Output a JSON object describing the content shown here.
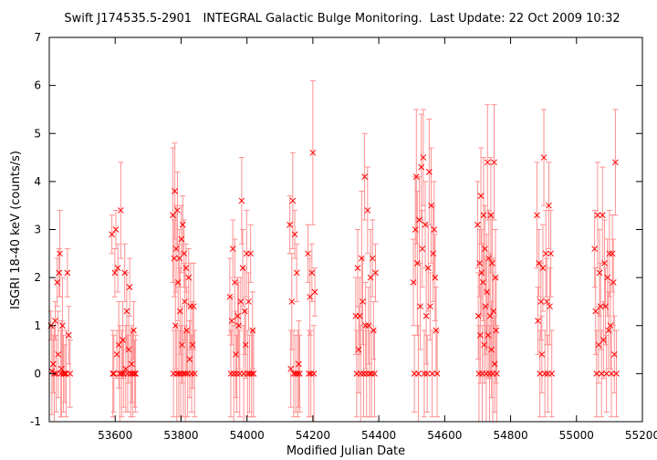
{
  "chart_data": {
    "type": "scatter",
    "title": "Swift J174535.5-2901   INTEGRAL Galactic Bulge Monitoring.  Last Update: 22 Oct 2009 10:32",
    "xlabel": "Modified Julian Date",
    "ylabel": "ISGRI 18-40 keV (counts/s)",
    "xlim": [
      53400,
      55200
    ],
    "ylim": [
      -1,
      7
    ],
    "xticks": [
      53600,
      53800,
      54000,
      54200,
      54400,
      54600,
      54800,
      55000,
      55200
    ],
    "yticks": [
      -1,
      0,
      1,
      2,
      3,
      4,
      5,
      6,
      7
    ],
    "grid": false,
    "marker": "x",
    "color": "#ff0000",
    "errorbar_color": "#ff9090",
    "series": [
      {
        "points": [
          [
            53405,
            1.0,
            0.3
          ],
          [
            53408,
            0.05,
            0.9
          ],
          [
            53412,
            0.2,
            0.6
          ],
          [
            53415,
            0.0,
            1.0
          ],
          [
            53418,
            1.1,
            0.4
          ],
          [
            53421,
            0.0,
            0.8
          ],
          [
            53424,
            1.9,
            0.5
          ],
          [
            53427,
            0.4,
            0.9
          ],
          [
            53430,
            2.1,
            0.5
          ],
          [
            53432,
            2.5,
            0.9
          ],
          [
            53435,
            0.0,
            0.9
          ],
          [
            53437,
            0.1,
            1.0
          ],
          [
            53440,
            1.0,
            1.0
          ],
          [
            53443,
            0.0,
            0.8
          ],
          [
            53447,
            0.0,
            0.6
          ],
          [
            53451,
            0.0,
            0.9
          ],
          [
            53455,
            2.1,
            0.5
          ],
          [
            53459,
            0.8,
            0.6
          ],
          [
            53463,
            0.0,
            0.7
          ],
          [
            53590,
            2.9,
            0.4
          ],
          [
            53593,
            0.0,
            0.9
          ],
          [
            53596,
            0.0,
            0.8
          ],
          [
            53599,
            2.1,
            0.5
          ],
          [
            53602,
            3.0,
            0.4
          ],
          [
            53605,
            0.4,
            0.5
          ],
          [
            53608,
            2.2,
            0.5
          ],
          [
            53611,
            0.6,
            0.9
          ],
          [
            53614,
            0.0,
            1.0
          ],
          [
            53617,
            3.4,
            1.0
          ],
          [
            53620,
            0.0,
            0.9
          ],
          [
            53623,
            0.7,
            0.8
          ],
          [
            53626,
            0.0,
            0.7
          ],
          [
            53629,
            2.1,
            0.6
          ],
          [
            53632,
            0.1,
            0.9
          ],
          [
            53635,
            1.3,
            0.8
          ],
          [
            53638,
            0.0,
            0.8
          ],
          [
            53641,
            0.5,
            0.7
          ],
          [
            53644,
            1.8,
            0.6
          ],
          [
            53647,
            0.0,
            0.9
          ],
          [
            53650,
            0.2,
            0.8
          ],
          [
            53653,
            0.0,
            0.9
          ],
          [
            53656,
            0.9,
            0.6
          ],
          [
            53659,
            0.0,
            0.7
          ],
          [
            53662,
            0.0,
            0.8
          ],
          [
            53775,
            3.3,
            1.4
          ],
          [
            53777,
            0.0,
            0.9
          ],
          [
            53779,
            2.4,
            0.8
          ],
          [
            53781,
            3.8,
            1.0
          ],
          [
            53783,
            1.0,
            0.9
          ],
          [
            53785,
            2.6,
            0.9
          ],
          [
            53787,
            0.0,
            1.0
          ],
          [
            53789,
            3.4,
            0.8
          ],
          [
            53791,
            1.9,
            0.8
          ],
          [
            53793,
            0.0,
            0.9
          ],
          [
            53795,
            2.4,
            0.6
          ],
          [
            53797,
            1.3,
            0.9
          ],
          [
            53799,
            0.0,
            1.0
          ],
          [
            53801,
            2.8,
            0.7
          ],
          [
            53803,
            0.6,
            0.8
          ],
          [
            53805,
            3.1,
            0.6
          ],
          [
            53807,
            0.0,
            0.9
          ],
          [
            53809,
            2.5,
            0.7
          ],
          [
            53811,
            1.5,
            0.8
          ],
          [
            53813,
            0.0,
            1.0
          ],
          [
            53815,
            2.2,
            0.5
          ],
          [
            53817,
            0.9,
            0.9
          ],
          [
            53820,
            0.0,
            0.9
          ],
          [
            53823,
            2.0,
            0.6
          ],
          [
            53826,
            0.3,
            0.8
          ],
          [
            53829,
            1.4,
            0.9
          ],
          [
            53832,
            0.0,
            0.8
          ],
          [
            53835,
            0.6,
            0.9
          ],
          [
            53838,
            1.4,
            0.9
          ],
          [
            53841,
            0.0,
            0.9
          ],
          [
            53948,
            1.6,
            0.8
          ],
          [
            53951,
            0.0,
            0.9
          ],
          [
            53954,
            1.1,
            0.5
          ],
          [
            53957,
            2.6,
            0.6
          ],
          [
            53960,
            0.0,
            1.0
          ],
          [
            53963,
            1.9,
            0.9
          ],
          [
            53966,
            0.4,
            0.9
          ],
          [
            53969,
            0.0,
            0.8
          ],
          [
            53972,
            1.2,
            0.8
          ],
          [
            53975,
            1.0,
            0.9
          ],
          [
            53978,
            0.0,
            0.9
          ],
          [
            53981,
            1.5,
            0.5
          ],
          [
            53984,
            3.6,
            0.9
          ],
          [
            53987,
            2.2,
            0.8
          ],
          [
            53990,
            0.0,
            1.0
          ],
          [
            53993,
            1.3,
            0.9
          ],
          [
            53996,
            0.6,
            0.7
          ],
          [
            53999,
            2.5,
            0.9
          ],
          [
            54002,
            0.0,
            0.9
          ],
          [
            54005,
            1.5,
            0.6
          ],
          [
            54008,
            0.0,
            0.8
          ],
          [
            54011,
            2.5,
            0.6
          ],
          [
            54014,
            0.0,
            0.9
          ],
          [
            54017,
            0.9,
            0.8
          ],
          [
            54020,
            0.0,
            0.9
          ],
          [
            54130,
            3.1,
            0.6
          ],
          [
            54133,
            0.1,
            0.8
          ],
          [
            54136,
            1.5,
            1.0
          ],
          [
            54139,
            3.6,
            1.0
          ],
          [
            54142,
            0.0,
            0.9
          ],
          [
            54145,
            2.9,
            0.5
          ],
          [
            54148,
            0.0,
            0.8
          ],
          [
            54151,
            2.1,
            0.6
          ],
          [
            54154,
            0.0,
            0.9
          ],
          [
            54157,
            0.2,
            0.9
          ],
          [
            54160,
            0.0,
            0.8
          ],
          [
            54185,
            2.5,
            0.6
          ],
          [
            54188,
            0.0,
            0.9
          ],
          [
            54191,
            1.6,
            0.8
          ],
          [
            54194,
            0.0,
            0.9
          ],
          [
            54197,
            2.1,
            0.6
          ],
          [
            54200,
            4.6,
            1.5
          ],
          [
            54203,
            0.0,
            1.0
          ],
          [
            54206,
            1.7,
            0.5
          ],
          [
            54330,
            1.2,
            0.8
          ],
          [
            54333,
            0.0,
            0.9
          ],
          [
            54336,
            2.2,
            0.8
          ],
          [
            54339,
            0.5,
            0.9
          ],
          [
            54342,
            1.2,
            0.8
          ],
          [
            54345,
            0.0,
            1.0
          ],
          [
            54348,
            2.4,
            1.4
          ],
          [
            54351,
            1.5,
            0.9
          ],
          [
            54354,
            0.0,
            0.9
          ],
          [
            54357,
            4.1,
            0.9
          ],
          [
            54360,
            1.0,
            0.9
          ],
          [
            54363,
            0.0,
            0.9
          ],
          [
            54366,
            3.4,
            0.9
          ],
          [
            54369,
            1.0,
            0.8
          ],
          [
            54372,
            0.0,
            0.9
          ],
          [
            54375,
            2.0,
            1.0
          ],
          [
            54378,
            0.0,
            0.9
          ],
          [
            54381,
            2.4,
            0.8
          ],
          [
            54384,
            0.9,
            0.6
          ],
          [
            54387,
            0.0,
            0.9
          ],
          [
            54390,
            2.1,
            0.6
          ],
          [
            54505,
            1.9,
            0.9
          ],
          [
            54508,
            0.0,
            0.8
          ],
          [
            54511,
            3.0,
            1.1
          ],
          [
            54514,
            4.1,
            1.4
          ],
          [
            54517,
            2.3,
            1.5
          ],
          [
            54520,
            0.0,
            1.0
          ],
          [
            54523,
            3.2,
            0.9
          ],
          [
            54526,
            1.4,
            0.9
          ],
          [
            54529,
            4.3,
            1.1
          ],
          [
            54532,
            2.6,
            0.8
          ],
          [
            54535,
            4.5,
            1.0
          ],
          [
            54538,
            0.0,
            0.9
          ],
          [
            54541,
            3.1,
            0.9
          ],
          [
            54544,
            1.2,
            1.0
          ],
          [
            54547,
            0.0,
            0.8
          ],
          [
            54550,
            2.2,
            0.9
          ],
          [
            54553,
            4.2,
            1.1
          ],
          [
            54556,
            1.4,
            0.7
          ],
          [
            54559,
            3.5,
            1.2
          ],
          [
            54562,
            0.0,
            0.9
          ],
          [
            54565,
            2.5,
            1.0
          ],
          [
            54568,
            3.0,
            1.0
          ],
          [
            54571,
            2.0,
            0.9
          ],
          [
            54574,
            0.9,
            0.9
          ],
          [
            54577,
            0.0,
            0.9
          ],
          [
            54700,
            3.1,
            0.9
          ],
          [
            54702,
            1.2,
            0.9
          ],
          [
            54704,
            0.0,
            1.0
          ],
          [
            54706,
            2.3,
            0.7
          ],
          [
            54708,
            0.8,
            1.0
          ],
          [
            54710,
            3.7,
            1.0
          ],
          [
            54712,
            2.1,
            0.9
          ],
          [
            54714,
            0.0,
            1.0
          ],
          [
            54716,
            1.9,
            0.8
          ],
          [
            54718,
            3.3,
            1.2
          ],
          [
            54720,
            0.6,
            0.8
          ],
          [
            54722,
            2.6,
            0.9
          ],
          [
            54724,
            1.4,
            1.0
          ],
          [
            54726,
            0.0,
            1.0
          ],
          [
            54728,
            1.7,
            1.2
          ],
          [
            54730,
            4.4,
            1.2
          ],
          [
            54732,
            0.8,
            0.9
          ],
          [
            54734,
            2.4,
            1.0
          ],
          [
            54736,
            0.0,
            1.0
          ],
          [
            54738,
            1.2,
            1.3
          ],
          [
            54740,
            3.3,
            1.2
          ],
          [
            54742,
            0.5,
            1.0
          ],
          [
            54744,
            2.3,
            1.0
          ],
          [
            54746,
            0.0,
            1.1
          ],
          [
            54748,
            1.3,
            1.1
          ],
          [
            54750,
            4.4,
            1.2
          ],
          [
            54752,
            0.2,
            1.0
          ],
          [
            54754,
            2.0,
            1.0
          ],
          [
            54756,
            0.9,
            1.1
          ],
          [
            54758,
            0.0,
            1.0
          ],
          [
            54880,
            3.3,
            1.1
          ],
          [
            54883,
            1.1,
            0.7
          ],
          [
            54886,
            2.3,
            0.7
          ],
          [
            54889,
            0.0,
            0.9
          ],
          [
            54892,
            1.5,
            0.8
          ],
          [
            54895,
            0.4,
            0.8
          ],
          [
            54898,
            2.2,
            0.9
          ],
          [
            54901,
            4.5,
            1.0
          ],
          [
            54904,
            0.0,
            0.9
          ],
          [
            54907,
            2.5,
            0.9
          ],
          [
            54910,
            1.5,
            0.9
          ],
          [
            54913,
            0.0,
            0.8
          ],
          [
            54916,
            3.5,
            0.9
          ],
          [
            54919,
            1.4,
            0.8
          ],
          [
            54922,
            2.5,
            0.9
          ],
          [
            54925,
            0.0,
            0.9
          ],
          [
            55055,
            2.6,
            0.8
          ],
          [
            55058,
            1.3,
            0.9
          ],
          [
            55061,
            0.0,
            0.9
          ],
          [
            55064,
            3.3,
            1.1
          ],
          [
            55067,
            0.6,
            0.8
          ],
          [
            55070,
            2.1,
            0.9
          ],
          [
            55073,
            1.4,
            0.9
          ],
          [
            55076,
            0.0,
            0.9
          ],
          [
            55079,
            3.3,
            1.0
          ],
          [
            55082,
            0.7,
            0.8
          ],
          [
            55085,
            2.3,
            0.9
          ],
          [
            55088,
            1.4,
            0.8
          ],
          [
            55091,
            0.0,
            0.8
          ],
          [
            55094,
            2.0,
            0.8
          ],
          [
            55097,
            0.9,
            0.8
          ],
          [
            55100,
            2.5,
            0.9
          ],
          [
            55103,
            1.0,
            0.9
          ],
          [
            55106,
            0.0,
            0.9
          ],
          [
            55109,
            2.5,
            0.8
          ],
          [
            55112,
            1.9,
            0.9
          ],
          [
            55115,
            0.4,
            0.8
          ],
          [
            55118,
            4.4,
            1.1
          ],
          [
            55121,
            0.0,
            0.9
          ]
        ]
      }
    ]
  }
}
